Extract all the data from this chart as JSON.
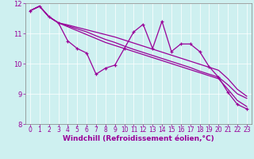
{
  "x": [
    0,
    1,
    2,
    3,
    4,
    5,
    6,
    7,
    8,
    9,
    10,
    11,
    12,
    13,
    14,
    15,
    16,
    17,
    18,
    19,
    20,
    21,
    22,
    23
  ],
  "line1": [
    11.75,
    11.9,
    11.55,
    11.35,
    10.75,
    10.5,
    10.35,
    9.65,
    9.85,
    9.95,
    10.5,
    11.05,
    11.3,
    10.5,
    11.4,
    10.4,
    10.65,
    10.65,
    10.4,
    9.9,
    9.55,
    9.05,
    8.65,
    8.5
  ],
  "line2": [
    11.75,
    11.9,
    11.55,
    11.35,
    11.25,
    11.15,
    11.05,
    10.92,
    10.8,
    10.7,
    10.58,
    10.47,
    10.37,
    10.27,
    10.17,
    10.07,
    9.97,
    9.87,
    9.75,
    9.65,
    9.55,
    9.3,
    9.0,
    8.85
  ],
  "line3": [
    11.75,
    11.9,
    11.55,
    11.35,
    11.28,
    11.2,
    11.12,
    11.04,
    10.96,
    10.88,
    10.78,
    10.68,
    10.58,
    10.48,
    10.38,
    10.28,
    10.18,
    10.08,
    9.98,
    9.88,
    9.78,
    9.5,
    9.15,
    8.92
  ],
  "line4": [
    11.75,
    11.9,
    11.55,
    11.35,
    11.22,
    11.09,
    10.96,
    10.83,
    10.7,
    10.6,
    10.5,
    10.4,
    10.3,
    10.2,
    10.1,
    10.0,
    9.9,
    9.8,
    9.7,
    9.6,
    9.5,
    9.15,
    8.78,
    8.58
  ],
  "color": "#990099",
  "bg_color": "#cef0f0",
  "xlabel": "Windchill (Refroidissement éolien,°C)",
  "ylim": [
    8,
    12
  ],
  "xlim": [
    -0.5,
    23.5
  ],
  "yticks": [
    8,
    9,
    10,
    11,
    12
  ],
  "xticks": [
    0,
    1,
    2,
    3,
    4,
    5,
    6,
    7,
    8,
    9,
    10,
    11,
    12,
    13,
    14,
    15,
    16,
    17,
    18,
    19,
    20,
    21,
    22,
    23
  ],
  "xlabel_fontsize": 6.5,
  "tick_fontsize": 5.5,
  "ytick_fontsize": 6.0
}
